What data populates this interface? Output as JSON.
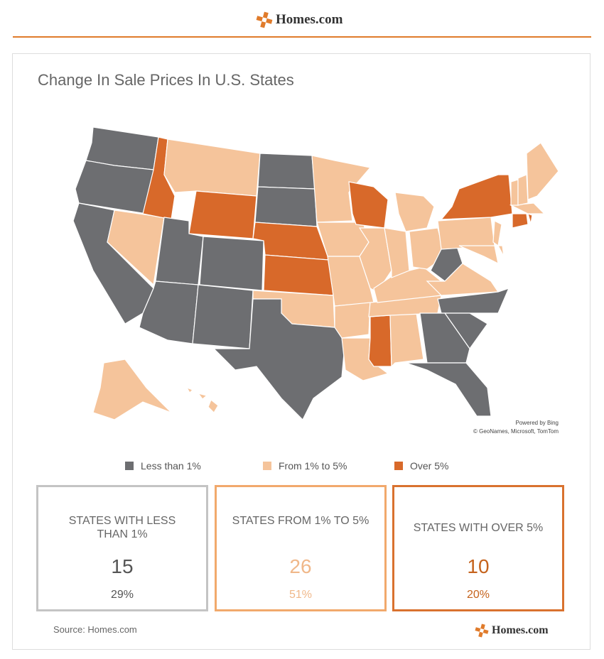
{
  "header": {
    "logo": "Homes.com"
  },
  "title": "Change In Sale Prices In U.S. States",
  "map": {
    "credit": [
      "Powered by Bing",
      "© GeoNames, Microsoft, TomTom"
    ]
  },
  "legend": [
    {
      "label": "Less than 1%",
      "color": "#6d6e71"
    },
    {
      "label": "From 1% to 5%",
      "color": "#f5c49b"
    },
    {
      "label": "Over 5%",
      "color": "#d8692a"
    }
  ],
  "cards": [
    {
      "title": "STATES WITH LESS THAN 1%",
      "count": 15,
      "share": "29%"
    },
    {
      "title": "STATES FROM 1% TO 5%",
      "count": 26,
      "share": "51%"
    },
    {
      "title": "STATES WITH OVER 5%",
      "count": 10,
      "share": "20%"
    }
  ],
  "footer": {
    "source": "Source: Homes.com",
    "logo": "Homes.com"
  }
}
